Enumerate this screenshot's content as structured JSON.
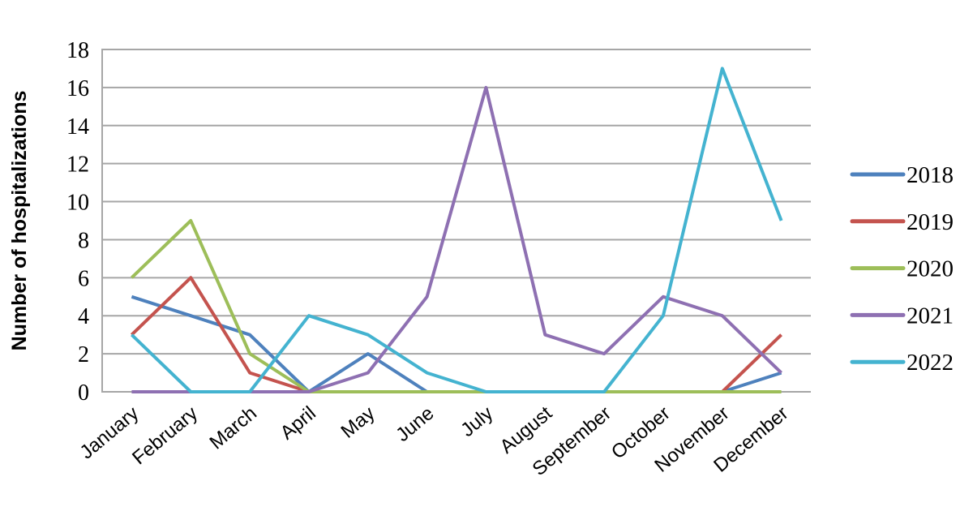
{
  "chart_data": {
    "type": "line",
    "title": "",
    "xlabel": "",
    "ylabel": "Number of hospitalizations",
    "categories": [
      "January",
      "February",
      "March",
      "April",
      "May",
      "June",
      "July",
      "August",
      "September",
      "October",
      "November",
      "December"
    ],
    "y_ticks": [
      0,
      2,
      4,
      6,
      8,
      10,
      12,
      14,
      16,
      18
    ],
    "ylim": [
      0,
      18
    ],
    "grid": "horizontal",
    "legend_position": "right",
    "colors": {
      "gridline": "#A6A6A6",
      "axis": "#A6A6A6",
      "text": "#000000",
      "background": "#FFFFFF"
    },
    "series": [
      {
        "name": "2018",
        "color": "#4E81BD",
        "values": [
          5,
          4,
          3,
          0,
          2,
          0,
          0,
          0,
          0,
          0,
          0,
          1
        ]
      },
      {
        "name": "2019",
        "color": "#C4534E",
        "values": [
          3,
          6,
          1,
          0,
          0,
          0,
          0,
          0,
          0,
          0,
          0,
          3
        ]
      },
      {
        "name": "2020",
        "color": "#9DBE59",
        "values": [
          6,
          9,
          2,
          0,
          0,
          0,
          0,
          0,
          0,
          0,
          0,
          0
        ]
      },
      {
        "name": "2021",
        "color": "#8E70B2",
        "values": [
          0,
          0,
          0,
          0,
          1,
          5,
          16,
          3,
          2,
          5,
          4,
          1
        ]
      },
      {
        "name": "2022",
        "color": "#44B3D0",
        "values": [
          3,
          0,
          0,
          4,
          3,
          1,
          0,
          0,
          0,
          4,
          17,
          9
        ]
      }
    ]
  }
}
